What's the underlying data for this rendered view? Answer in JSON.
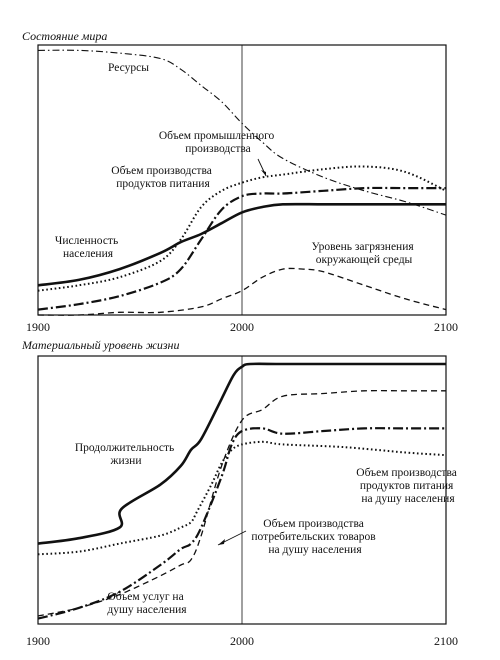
{
  "chart_data": [
    {
      "type": "line",
      "title": "Состояние мира",
      "xlim": [
        1900,
        2100
      ],
      "ylim": [
        0,
        1
      ],
      "x_ticks": [
        1900,
        2000,
        2100
      ],
      "reference_line_x": 2000,
      "grid": false,
      "series": [
        {
          "name": "Ресурсы",
          "style": "dash-dot",
          "x": [
            1900,
            1920,
            1940,
            1960,
            1970,
            1980,
            1990,
            2000,
            2010,
            2020,
            2040,
            2060,
            2080,
            2100
          ],
          "values": [
            0.98,
            0.98,
            0.97,
            0.95,
            0.91,
            0.85,
            0.79,
            0.71,
            0.64,
            0.58,
            0.51,
            0.46,
            0.42,
            0.37
          ]
        },
        {
          "name": "Объем промышленного производства",
          "style": "dotted",
          "x": [
            1900,
            1920,
            1940,
            1960,
            1970,
            1980,
            1990,
            2000,
            2010,
            2020,
            2040,
            2060,
            2080,
            2100
          ],
          "values": [
            0.09,
            0.11,
            0.14,
            0.2,
            0.28,
            0.4,
            0.46,
            0.49,
            0.51,
            0.52,
            0.54,
            0.55,
            0.53,
            0.46
          ]
        },
        {
          "name": "Объем производства продуктов питания",
          "style": "long-dash-dot",
          "x": [
            1900,
            1920,
            1940,
            1960,
            1970,
            1980,
            1990,
            2000,
            2010,
            2020,
            2040,
            2060,
            2080,
            2100
          ],
          "values": [
            0.02,
            0.04,
            0.07,
            0.12,
            0.17,
            0.28,
            0.39,
            0.44,
            0.45,
            0.45,
            0.46,
            0.47,
            0.47,
            0.47
          ]
        },
        {
          "name": "Численность населения",
          "style": "solid",
          "x": [
            1900,
            1920,
            1940,
            1960,
            1970,
            1980,
            1990,
            2000,
            2010,
            2020,
            2040,
            2060,
            2080,
            2100
          ],
          "values": [
            0.11,
            0.13,
            0.17,
            0.23,
            0.27,
            0.3,
            0.34,
            0.38,
            0.4,
            0.41,
            0.41,
            0.41,
            0.41,
            0.41
          ]
        },
        {
          "name": "Уровень загрязнения окружающей среды",
          "style": "dashed",
          "x": [
            1900,
            1920,
            1940,
            1960,
            1980,
            1990,
            2000,
            2010,
            2020,
            2030,
            2040,
            2060,
            2080,
            2100
          ],
          "values": [
            0.0,
            0.0,
            0.01,
            0.01,
            0.03,
            0.06,
            0.09,
            0.14,
            0.17,
            0.17,
            0.16,
            0.11,
            0.06,
            0.02
          ]
        }
      ]
    },
    {
      "type": "line",
      "title": "Материальный уровень жизни",
      "xlim": [
        1900,
        2100
      ],
      "ylim": [
        0,
        1
      ],
      "x_ticks": [
        1900,
        2000,
        2100
      ],
      "reference_line_x": 2000,
      "grid": false,
      "series": [
        {
          "name": "Продолжительность жизни",
          "style": "solid",
          "x": [
            1900,
            1920,
            1940,
            1941,
            1960,
            1970,
            1975,
            1980,
            1990,
            1996,
            2000,
            2004,
            2020,
            2050,
            2100
          ],
          "values": [
            0.3,
            0.32,
            0.36,
            0.43,
            0.52,
            0.59,
            0.65,
            0.69,
            0.84,
            0.93,
            0.96,
            0.97,
            0.97,
            0.97,
            0.97
          ]
        },
        {
          "name": "Объем производства продуктов питания на душу населения",
          "style": "dotted",
          "x": [
            1900,
            1920,
            1940,
            1960,
            1970,
            1975,
            1978,
            1985,
            1990,
            1995,
            2000,
            2010,
            2020,
            2050,
            2080,
            2100
          ],
          "values": [
            0.26,
            0.27,
            0.3,
            0.33,
            0.36,
            0.38,
            0.42,
            0.52,
            0.6,
            0.65,
            0.67,
            0.68,
            0.67,
            0.66,
            0.64,
            0.63
          ]
        },
        {
          "name": "Объем производства потребительских товаров на душу населения",
          "style": "long-dash-dot",
          "x": [
            1900,
            1920,
            1940,
            1960,
            1970,
            1975,
            1980,
            1990,
            1995,
            2000,
            2010,
            2020,
            2040,
            2060,
            2080,
            2100
          ],
          "values": [
            0.02,
            0.06,
            0.12,
            0.22,
            0.28,
            0.3,
            0.36,
            0.55,
            0.67,
            0.72,
            0.73,
            0.71,
            0.72,
            0.73,
            0.73,
            0.73
          ]
        },
        {
          "name": "Объем услуг на душу населения",
          "style": "dashed",
          "x": [
            1900,
            1920,
            1940,
            1960,
            1970,
            1975,
            1980,
            1990,
            2000,
            2010,
            2020,
            2040,
            2060,
            2080,
            2100
          ],
          "values": [
            0.03,
            0.06,
            0.11,
            0.18,
            0.22,
            0.24,
            0.33,
            0.59,
            0.76,
            0.8,
            0.85,
            0.86,
            0.87,
            0.87,
            0.87
          ]
        }
      ]
    }
  ]
}
